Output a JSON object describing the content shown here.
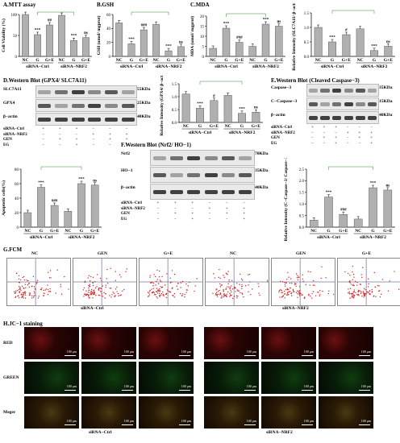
{
  "panelA": {
    "title": "A.MTT assay",
    "ylabel": "Cell Viability (%)",
    "groups": [
      "siRNA−Ctrl",
      "siRNA−NRF2"
    ],
    "cats": [
      "NC",
      "G",
      "G+E",
      "NC",
      "G",
      "G+E"
    ],
    "values": [
      100,
      52,
      75,
      98,
      38,
      45
    ],
    "sig": [
      "",
      "***",
      "##",
      "",
      "***",
      "ns"
    ],
    "ylim": [
      0,
      100
    ],
    "ticks": [
      "0",
      "50",
      "100"
    ]
  },
  "panelB": {
    "title": "B.GSH",
    "ylabel": "GSH (umol/ mgprot)",
    "groups": [
      "siRNA−Ctrl",
      "siRNA−NRF2"
    ],
    "cats": [
      "NC",
      "G",
      "G+E",
      "NC",
      "G",
      "G+E"
    ],
    "values": [
      48,
      18,
      38,
      46,
      8,
      14
    ],
    "sig": [
      "",
      "***",
      "###",
      "",
      "***",
      "ns"
    ],
    "ylim": [
      0,
      60
    ],
    "ticks": [
      "0",
      "20",
      "40",
      "60"
    ]
  },
  "panelC": {
    "title": "C.MDA",
    "ylabel": "MDA (umol/ mgprot)",
    "groups": [
      "siRNA−Ctrl",
      "siRNA−NRF2"
    ],
    "cats": [
      "NC",
      "G",
      "G+E",
      "NC",
      "G",
      "G+E"
    ],
    "values": [
      4,
      14,
      7,
      5,
      16,
      15
    ],
    "sig": [
      "",
      "***",
      "###",
      "",
      "***",
      "ns"
    ],
    "ylim": [
      0,
      20
    ],
    "ticks": [
      "0",
      "5",
      "10",
      "15",
      "20"
    ]
  },
  "panelSLC": {
    "ylabel": "Relative Intensity (SLC7A11/ β−actin)",
    "groups": [
      "siRNA−Ctrl",
      "siRNA−NRF2"
    ],
    "cats": [
      "NC",
      "G",
      "G+E",
      "NC",
      "G",
      "G+E"
    ],
    "values": [
      1.0,
      0.5,
      0.75,
      0.95,
      0.2,
      0.35
    ],
    "sig": [
      "",
      "***",
      "#",
      "",
      "***",
      "ns"
    ],
    "ylim": [
      0,
      1.5
    ],
    "ticks": [
      "0.0",
      "0.5",
      "1.0",
      "1.5"
    ]
  },
  "panelD": {
    "title": "D.Western Blot (GPX4/ SLC7A11)",
    "rows": [
      "SLC7A11",
      "GPX4",
      "β−actin"
    ],
    "mw": [
      "55KDa",
      "25KDa",
      "40KDa"
    ],
    "treat_labels": [
      "siRNA−Ctrl",
      "siRNA−NRF2",
      "GEN",
      "EG"
    ],
    "treat": [
      [
        "+",
        "+",
        "+",
        "−",
        "−",
        "−"
      ],
      [
        "−",
        "−",
        "−",
        "+",
        "+",
        "+"
      ],
      [
        "−",
        "+",
        "+",
        "−",
        "+",
        "+"
      ],
      [
        "−",
        "−",
        "+",
        "−",
        "−",
        "+"
      ]
    ]
  },
  "panelDbar": {
    "ylabel": "Relative Intensity (GPX4/ β−actin)",
    "groups": [
      "siRNA−Ctrl",
      "siRNA−NRF2"
    ],
    "cats": [
      "NC",
      "G",
      "G+E",
      "NC",
      "G",
      "G+E"
    ],
    "values": [
      1.1,
      0.55,
      0.85,
      1.05,
      0.35,
      0.4
    ],
    "sig": [
      "",
      "***",
      "#",
      "",
      "***",
      "ns"
    ],
    "ylim": [
      0,
      1.5
    ],
    "ticks": [
      "0.0",
      "0.5",
      "1.0",
      "1.5"
    ]
  },
  "panelE": {
    "title": "E.Western Blot (Cleaved Caspase−3)",
    "rows": [
      "Caspase−3",
      "C−Caspase−3",
      "β−actin"
    ],
    "mw": [
      "35KDa",
      "15KDa",
      "40KDa"
    ],
    "treat_labels": [
      "siRNA−Ctrl",
      "siRNA−NRF2",
      "GEN",
      "EG"
    ],
    "treat": [
      [
        "+",
        "+",
        "+",
        "−",
        "−",
        "−"
      ],
      [
        "−",
        "−",
        "−",
        "+",
        "+",
        "+"
      ],
      [
        "−",
        "+",
        "+",
        "−",
        "+",
        "+"
      ],
      [
        "−",
        "−",
        "+",
        "−",
        "−",
        "+"
      ]
    ]
  },
  "panelEbar": {
    "ylabel": "Relative Intensity (C−Caspase−3/ Caspase−3)",
    "groups": [
      "siRNA−Ctrl",
      "siRNA−NRF2"
    ],
    "cats": [
      "NC",
      "G",
      "G+E",
      "NC",
      "G",
      "G+E"
    ],
    "values": [
      0.3,
      1.3,
      0.55,
      0.35,
      1.7,
      1.6
    ],
    "sig": [
      "",
      "***",
      "###",
      "",
      "***",
      "ns"
    ],
    "ylim": [
      0,
      2.5
    ],
    "ticks": [
      "0.0",
      "0.5",
      "1.0",
      "1.5",
      "2.0",
      "2.5"
    ]
  },
  "panelApop": {
    "ylabel": "Apoptotic cells(%)",
    "groups": [
      "siRNA−Ctrl",
      "siRNA−NRF2"
    ],
    "cats": [
      "NC",
      "G",
      "G+E",
      "NC",
      "G",
      "G+E"
    ],
    "values": [
      20,
      55,
      30,
      22,
      60,
      58
    ],
    "sig": [
      "",
      "***",
      "###",
      "",
      "***",
      "ns"
    ],
    "ylim": [
      0,
      80
    ],
    "ticks": [
      "0",
      "20",
      "40",
      "60",
      "80"
    ]
  },
  "panelF": {
    "title": "F.Western Blot (Nrf2/ HO−1)",
    "rows": [
      "Nrf2",
      "HO−1",
      "β−actin"
    ],
    "mw": [
      "70KDa",
      "35KDa",
      "40KDa"
    ],
    "treat_labels": [
      "siRNA−Ctrl",
      "siRNA−NRF2",
      "GEN",
      "EG"
    ],
    "treat": [
      [
        "+",
        "+",
        "+",
        "−",
        "−",
        "−"
      ],
      [
        "−",
        "−",
        "−",
        "+",
        "+",
        "+"
      ],
      [
        "−",
        "+",
        "+",
        "−",
        "+",
        "+"
      ],
      [
        "−",
        "−",
        "+",
        "−",
        "−",
        "+"
      ]
    ]
  },
  "panelG": {
    "title": "G.FCM",
    "labels": [
      "NC",
      "GEN",
      "G+E",
      "NC",
      "GEN",
      "G+E"
    ],
    "groups": [
      "siRNA−Ctrl",
      "siRNA−NRF2"
    ]
  },
  "panelH": {
    "title": "H.JC−1 staining",
    "rows": [
      "RED",
      "GREEN",
      "Meger"
    ],
    "scale": "100 μm",
    "groups": [
      "siRNA−Ctrl",
      "siRNA−NRF2"
    ]
  },
  "colors": {
    "bar": "#b0b0b0",
    "text": "#000000",
    "fcm": "#d62020"
  }
}
